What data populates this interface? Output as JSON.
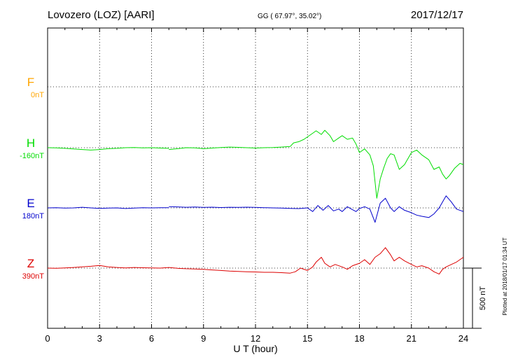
{
  "header": {
    "station": "Lovozero (LOZ)  [AARI]",
    "coords": "GG ( 67.97°,  35.02°)",
    "date": "2017/12/17"
  },
  "side_note": "Plotted at 2018/01/17 01:34 UT",
  "scale_label": "500 nT",
  "chart_data": {
    "type": "line",
    "xlabel": "U T (hour)",
    "xlim": [
      0,
      24
    ],
    "xticks": [
      "0",
      "3",
      "6",
      "9",
      "12",
      "15",
      "18",
      "21",
      "24"
    ],
    "grid": true,
    "scale_bar_nT": 500,
    "series": [
      {
        "name": "F",
        "offset": "0nT",
        "color": "#ffa500",
        "points": []
      },
      {
        "name": "H",
        "offset": "-160nT",
        "color": "#00dd00",
        "points": [
          [
            0,
            -160
          ],
          [
            0.5,
            -162
          ],
          [
            1,
            -165
          ],
          [
            1.5,
            -170
          ],
          [
            2,
            -175
          ],
          [
            2.5,
            -180
          ],
          [
            3,
            -175
          ],
          [
            3.5,
            -168
          ],
          [
            4,
            -165
          ],
          [
            4.5,
            -160
          ],
          [
            5,
            -158
          ],
          [
            5.5,
            -162
          ],
          [
            6,
            -160
          ],
          [
            6.5,
            -163
          ],
          [
            7,
            -165
          ],
          [
            7,
            -175
          ],
          [
            7.5,
            -168
          ],
          [
            8,
            -160
          ],
          [
            8.5,
            -162
          ],
          [
            9,
            -168
          ],
          [
            9.5,
            -163
          ],
          [
            10,
            -158
          ],
          [
            10.5,
            -155
          ],
          [
            11,
            -157
          ],
          [
            11.5,
            -160
          ],
          [
            12,
            -163
          ],
          [
            12.5,
            -160
          ],
          [
            13,
            -158
          ],
          [
            13.5,
            -155
          ],
          [
            14,
            -150
          ],
          [
            14.2,
            -120
          ],
          [
            14.5,
            -110
          ],
          [
            14.8,
            -90
          ],
          [
            15,
            -70
          ],
          [
            15.3,
            -40
          ],
          [
            15.5,
            -20
          ],
          [
            15.8,
            -50
          ],
          [
            16,
            -15
          ],
          [
            16.3,
            -60
          ],
          [
            16.5,
            -110
          ],
          [
            16.8,
            -80
          ],
          [
            17,
            -60
          ],
          [
            17.3,
            -90
          ],
          [
            17.6,
            -80
          ],
          [
            17.8,
            -130
          ],
          [
            18,
            -200
          ],
          [
            18.3,
            -170
          ],
          [
            18.6,
            -220
          ],
          [
            18.8,
            -310
          ],
          [
            19,
            -580
          ],
          [
            19.2,
            -420
          ],
          [
            19.4,
            -330
          ],
          [
            19.6,
            -250
          ],
          [
            19.8,
            -210
          ],
          [
            20,
            -220
          ],
          [
            20.3,
            -340
          ],
          [
            20.6,
            -300
          ],
          [
            21,
            -200
          ],
          [
            21.3,
            -180
          ],
          [
            21.6,
            -220
          ],
          [
            22,
            -260
          ],
          [
            22.3,
            -340
          ],
          [
            22.6,
            -320
          ],
          [
            22.8,
            -380
          ],
          [
            23,
            -420
          ],
          [
            23.2,
            -390
          ],
          [
            23.5,
            -330
          ],
          [
            23.8,
            -290
          ],
          [
            24,
            -300
          ]
        ]
      },
      {
        "name": "E",
        "offset": "180nT",
        "color": "#0000cc",
        "points": [
          [
            0,
            180
          ],
          [
            0.5,
            182
          ],
          [
            1,
            178
          ],
          [
            1.5,
            180
          ],
          [
            2,
            185
          ],
          [
            2.5,
            180
          ],
          [
            3,
            176
          ],
          [
            3.5,
            178
          ],
          [
            4,
            180
          ],
          [
            4.5,
            175
          ],
          [
            5,
            178
          ],
          [
            5.5,
            182
          ],
          [
            6,
            180
          ],
          [
            6.5,
            181
          ],
          [
            7,
            182
          ],
          [
            7,
            190
          ],
          [
            7.5,
            188
          ],
          [
            8,
            185
          ],
          [
            8.5,
            187
          ],
          [
            9,
            184
          ],
          [
            9.5,
            186
          ],
          [
            10,
            183
          ],
          [
            10.5,
            185
          ],
          [
            11,
            184
          ],
          [
            11.5,
            186
          ],
          [
            12,
            184
          ],
          [
            12.5,
            182
          ],
          [
            13,
            180
          ],
          [
            13.5,
            178
          ],
          [
            14,
            176
          ],
          [
            14.5,
            174
          ],
          [
            15,
            180
          ],
          [
            15.3,
            150
          ],
          [
            15.6,
            200
          ],
          [
            15.9,
            160
          ],
          [
            16.2,
            200
          ],
          [
            16.5,
            155
          ],
          [
            16.8,
            170
          ],
          [
            17,
            150
          ],
          [
            17.3,
            190
          ],
          [
            17.6,
            165
          ],
          [
            17.8,
            150
          ],
          [
            18,
            175
          ],
          [
            18.3,
            190
          ],
          [
            18.6,
            170
          ],
          [
            18.9,
            60
          ],
          [
            19.2,
            220
          ],
          [
            19.5,
            260
          ],
          [
            19.8,
            180
          ],
          [
            20,
            150
          ],
          [
            20.3,
            190
          ],
          [
            20.6,
            160
          ],
          [
            21,
            140
          ],
          [
            21.3,
            120
          ],
          [
            21.6,
            110
          ],
          [
            22,
            100
          ],
          [
            22.3,
            130
          ],
          [
            22.6,
            180
          ],
          [
            22.8,
            230
          ],
          [
            23,
            280
          ],
          [
            23.3,
            230
          ],
          [
            23.6,
            170
          ],
          [
            24,
            150
          ]
        ]
      },
      {
        "name": "Z",
        "offset": "390nT",
        "color": "#dd0000",
        "points": [
          [
            0,
            390
          ],
          [
            0.5,
            388
          ],
          [
            1,
            392
          ],
          [
            1.5,
            395
          ],
          [
            2,
            400
          ],
          [
            2.5,
            405
          ],
          [
            3,
            412
          ],
          [
            3.5,
            400
          ],
          [
            4,
            395
          ],
          [
            4.5,
            392
          ],
          [
            5,
            395
          ],
          [
            5.5,
            393
          ],
          [
            6,
            392
          ],
          [
            6.5,
            390
          ],
          [
            7,
            395
          ],
          [
            7.5,
            388
          ],
          [
            8,
            385
          ],
          [
            8.5,
            383
          ],
          [
            9,
            380
          ],
          [
            9.5,
            375
          ],
          [
            10,
            370
          ],
          [
            10.5,
            365
          ],
          [
            11,
            362
          ],
          [
            11.5,
            360
          ],
          [
            12,
            358
          ],
          [
            12.5,
            355
          ],
          [
            13,
            355
          ],
          [
            13.5,
            352
          ],
          [
            14,
            348
          ],
          [
            14.3,
            360
          ],
          [
            14.6,
            390
          ],
          [
            15,
            370
          ],
          [
            15.3,
            400
          ],
          [
            15.5,
            440
          ],
          [
            15.8,
            480
          ],
          [
            16,
            430
          ],
          [
            16.3,
            400
          ],
          [
            16.6,
            420
          ],
          [
            17,
            400
          ],
          [
            17.3,
            380
          ],
          [
            17.6,
            410
          ],
          [
            18,
            430
          ],
          [
            18.3,
            460
          ],
          [
            18.6,
            420
          ],
          [
            18.9,
            480
          ],
          [
            19.2,
            510
          ],
          [
            19.5,
            560
          ],
          [
            19.8,
            500
          ],
          [
            20,
            450
          ],
          [
            20.3,
            480
          ],
          [
            20.6,
            450
          ],
          [
            21,
            420
          ],
          [
            21.3,
            400
          ],
          [
            21.6,
            410
          ],
          [
            22,
            390
          ],
          [
            22.3,
            360
          ],
          [
            22.6,
            340
          ],
          [
            22.8,
            380
          ],
          [
            23,
            400
          ],
          [
            23.3,
            420
          ],
          [
            23.6,
            440
          ],
          [
            24,
            480
          ]
        ]
      }
    ]
  }
}
